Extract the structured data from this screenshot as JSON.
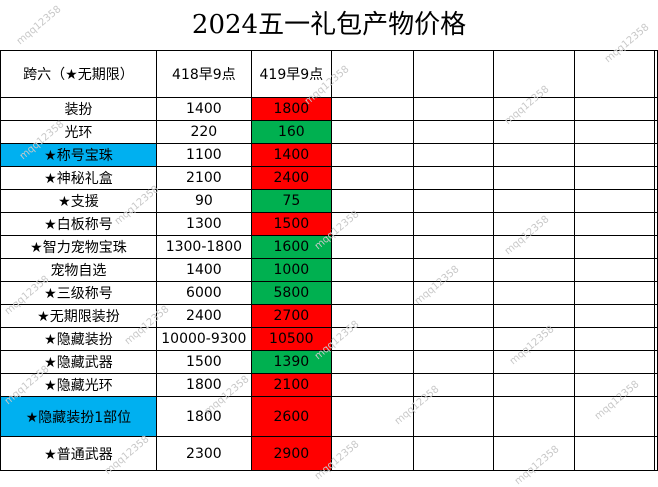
{
  "title": "2024五一礼包产物价格",
  "header": {
    "col1": "跨六（★无期限）",
    "col2": "418早9点",
    "col3": "419早9点"
  },
  "colors": {
    "highlight": "#00b0f0",
    "up": "#ff0000",
    "down": "#00b050"
  },
  "rows": [
    {
      "name": "装扮",
      "price418": "1400",
      "price419": "1800",
      "change": "up",
      "highlight": false
    },
    {
      "name": "光环",
      "price418": "220",
      "price419": "160",
      "change": "down",
      "highlight": false
    },
    {
      "name": "★称号宝珠",
      "price418": "1100",
      "price419": "1400",
      "change": "up",
      "highlight": true
    },
    {
      "name": "★神秘礼盒",
      "price418": "2100",
      "price419": "2400",
      "change": "up",
      "highlight": false
    },
    {
      "name": "★支援",
      "price418": "90",
      "price419": "75",
      "change": "down",
      "highlight": false
    },
    {
      "name": "★白板称号",
      "price418": "1300",
      "price419": "1500",
      "change": "up",
      "highlight": false
    },
    {
      "name": "★智力宠物宝珠",
      "price418": "1300-1800",
      "price419": "1600",
      "change": "down",
      "highlight": false
    },
    {
      "name": "宠物自选",
      "price418": "1400",
      "price419": "1000",
      "change": "down",
      "highlight": false
    },
    {
      "name": "★三级称号",
      "price418": "6000",
      "price419": "5800",
      "change": "down",
      "highlight": false
    },
    {
      "name": "★无期限装扮",
      "price418": "2400",
      "price419": "2700",
      "change": "up",
      "highlight": false
    },
    {
      "name": "★隐藏装扮",
      "price418": "10000-9300",
      "price419": "10500",
      "change": "up",
      "highlight": false
    },
    {
      "name": "★隐藏武器",
      "price418": "1500",
      "price419": "1390",
      "change": "down",
      "highlight": false
    },
    {
      "name": "★隐藏光环",
      "price418": "1800",
      "price419": "2100",
      "change": "up",
      "highlight": false
    },
    {
      "name": "★隐藏装扮1部位",
      "price418": "1800",
      "price419": "2600",
      "change": "up",
      "highlight": true
    },
    {
      "name": "★普通武器",
      "price418": "2300",
      "price419": "2900",
      "change": "up",
      "highlight": false
    }
  ],
  "watermark": "mqq12358"
}
